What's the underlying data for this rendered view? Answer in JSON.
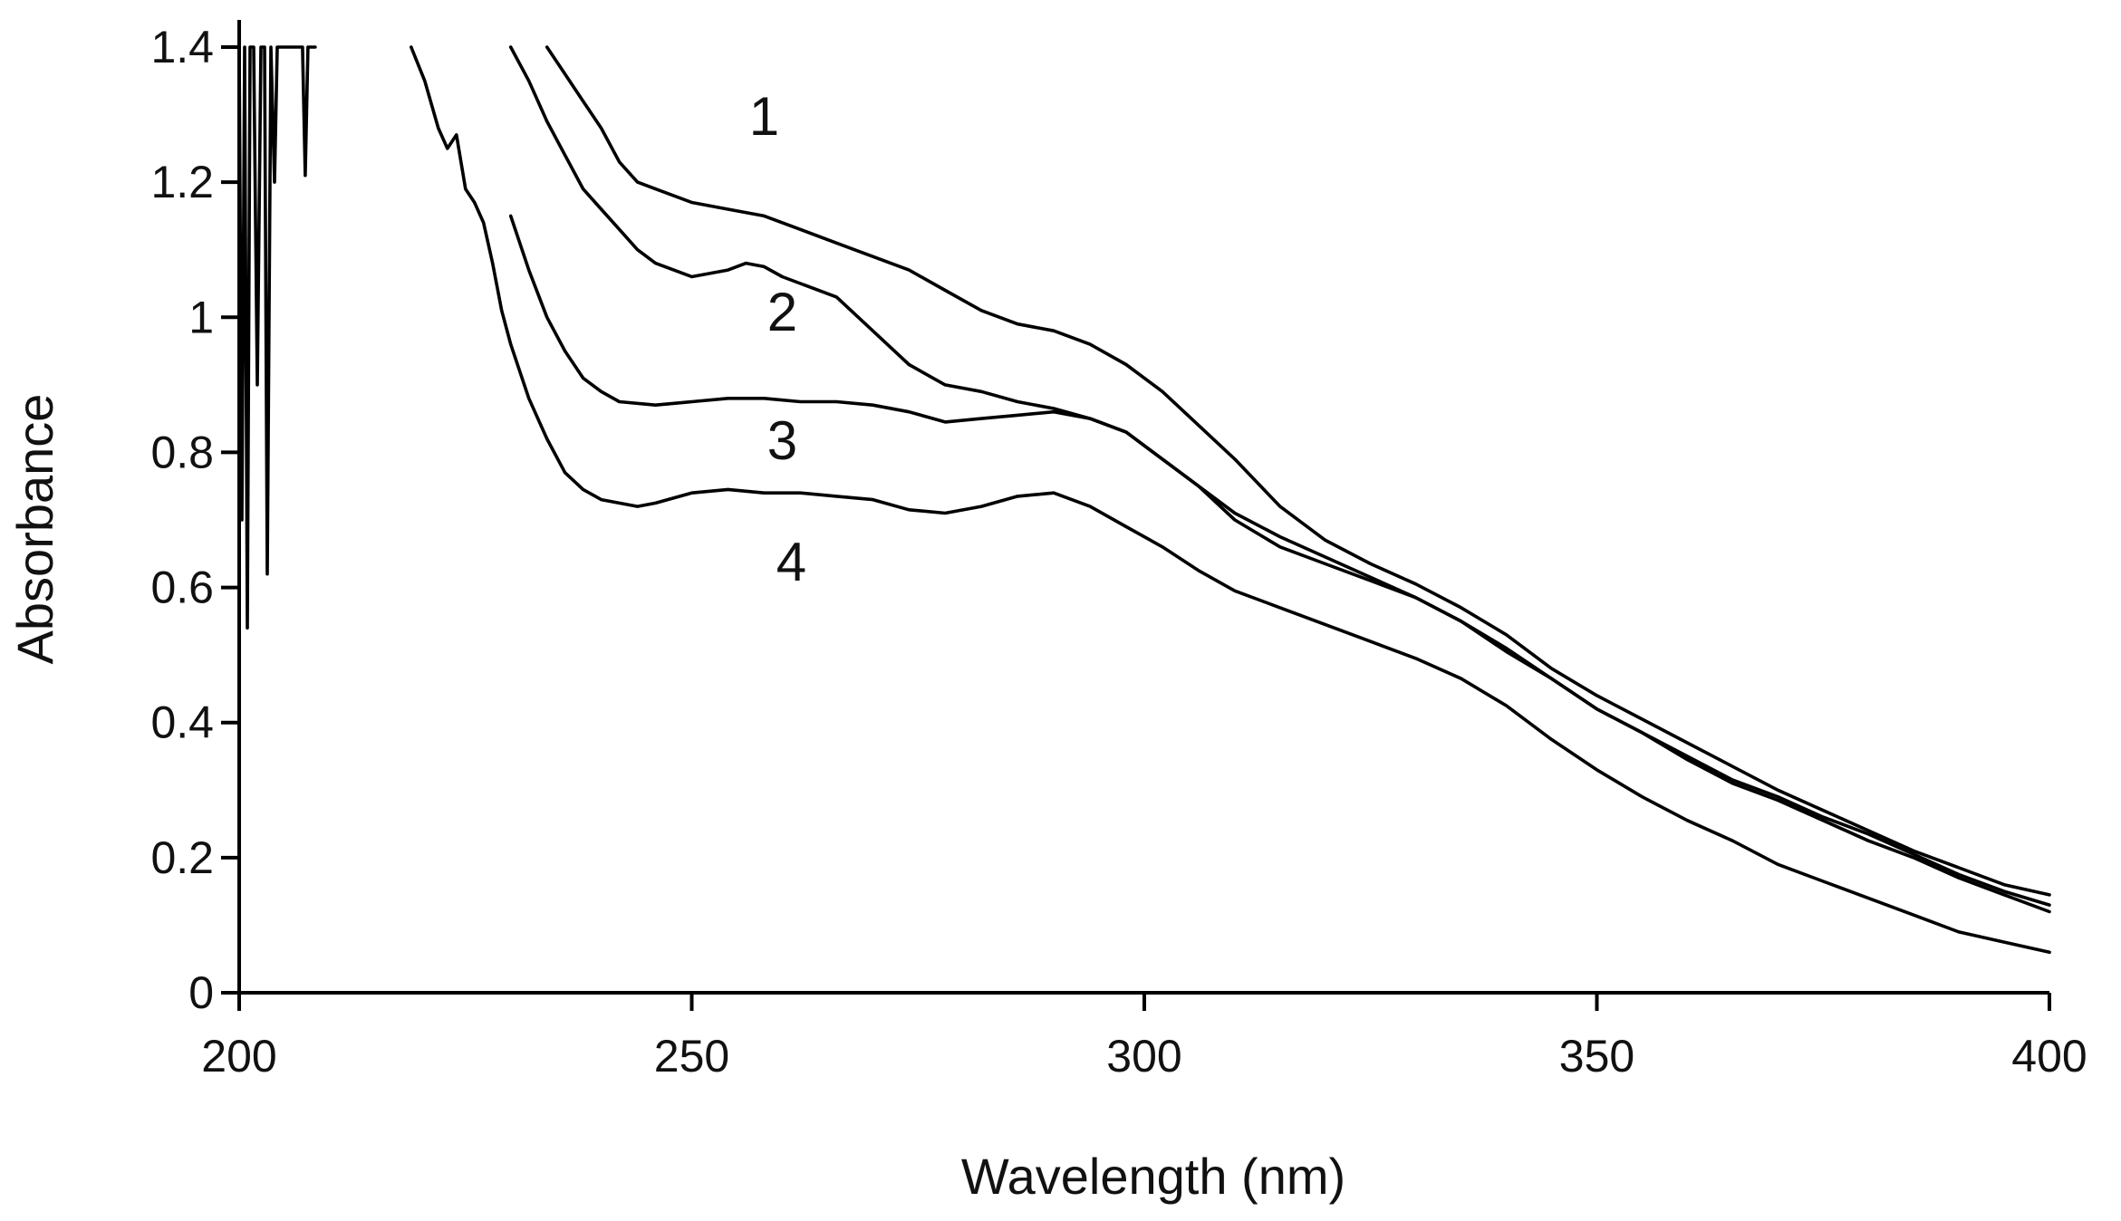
{
  "chart_data": {
    "type": "line",
    "title": "",
    "xlabel": "Wavelength (nm)",
    "ylabel": "Absorbance",
    "xlim": [
      200,
      400
    ],
    "ylim": [
      0,
      1.4
    ],
    "xticks": [
      200,
      250,
      300,
      350,
      400
    ],
    "yticks": [
      0,
      0.2,
      0.4,
      0.6,
      0.8,
      1,
      1.2,
      1.4
    ],
    "xtick_labels": [
      "200",
      "250",
      "300",
      "350",
      "400"
    ],
    "ytick_labels": [
      "0",
      "0.2",
      "0.4",
      "0.6",
      "0.8",
      "1",
      "1.2",
      "1.4"
    ],
    "grid": false,
    "legend": "none",
    "noise": {
      "x": [
        200,
        200.3,
        200.6,
        200.9,
        201.2,
        201.6,
        202,
        202.4,
        202.8,
        203.1,
        203.5,
        203.9,
        204.2,
        204.6,
        205.2,
        207,
        207.3,
        207.6,
        208,
        208.4
      ],
      "y": [
        1.4,
        0.7,
        1.4,
        0.54,
        1.4,
        1.4,
        0.9,
        1.4,
        1.4,
        0.62,
        1.4,
        1.2,
        1.4,
        1.4,
        1.4,
        1.4,
        1.21,
        1.4,
        1.4,
        1.4
      ]
    },
    "series": [
      {
        "name": "1",
        "x": [
          234,
          236,
          238,
          240,
          242,
          244,
          246,
          250,
          254,
          258,
          262,
          266,
          270,
          274,
          278,
          282,
          286,
          290,
          294,
          298,
          302,
          306,
          310,
          315,
          320,
          325,
          330,
          335,
          340,
          345,
          350,
          355,
          360,
          365,
          370,
          375,
          380,
          385,
          390,
          395,
          400
        ],
        "y": [
          1.4,
          1.36,
          1.32,
          1.28,
          1.23,
          1.2,
          1.19,
          1.17,
          1.16,
          1.15,
          1.13,
          1.11,
          1.09,
          1.07,
          1.04,
          1.01,
          0.99,
          0.98,
          0.96,
          0.93,
          0.89,
          0.84,
          0.79,
          0.72,
          0.67,
          0.635,
          0.605,
          0.57,
          0.53,
          0.48,
          0.44,
          0.405,
          0.37,
          0.335,
          0.3,
          0.27,
          0.24,
          0.21,
          0.185,
          0.16,
          0.145
        ]
      },
      {
        "name": "2",
        "x": [
          230,
          232,
          234,
          236,
          238,
          240,
          242,
          244,
          246,
          250,
          254,
          256,
          258,
          260,
          262,
          266,
          270,
          274,
          278,
          282,
          286,
          290,
          294,
          298,
          302,
          306,
          310,
          315,
          320,
          325,
          330,
          335,
          340,
          345,
          350,
          355,
          360,
          365,
          370,
          375,
          380,
          385,
          390,
          395,
          400
        ],
        "y": [
          1.4,
          1.35,
          1.29,
          1.24,
          1.19,
          1.16,
          1.13,
          1.1,
          1.08,
          1.06,
          1.07,
          1.08,
          1.075,
          1.06,
          1.05,
          1.03,
          0.98,
          0.93,
          0.9,
          0.89,
          0.875,
          0.865,
          0.85,
          0.83,
          0.79,
          0.75,
          0.71,
          0.675,
          0.645,
          0.615,
          0.585,
          0.55,
          0.51,
          0.465,
          0.42,
          0.385,
          0.35,
          0.315,
          0.29,
          0.26,
          0.235,
          0.205,
          0.175,
          0.15,
          0.13
        ]
      },
      {
        "name": "3",
        "x": [
          230,
          232,
          234,
          236,
          238,
          240,
          242,
          246,
          250,
          254,
          258,
          262,
          266,
          270,
          274,
          278,
          282,
          286,
          290,
          294,
          298,
          302,
          306,
          310,
          315,
          320,
          325,
          330,
          335,
          340,
          345,
          350,
          355,
          360,
          365,
          370,
          375,
          380,
          385,
          390,
          395,
          400
        ],
        "y": [
          1.15,
          1.07,
          1.0,
          0.95,
          0.91,
          0.89,
          0.875,
          0.87,
          0.875,
          0.88,
          0.88,
          0.875,
          0.875,
          0.87,
          0.86,
          0.845,
          0.85,
          0.855,
          0.86,
          0.85,
          0.83,
          0.79,
          0.75,
          0.7,
          0.66,
          0.635,
          0.61,
          0.585,
          0.55,
          0.505,
          0.465,
          0.42,
          0.385,
          0.345,
          0.31,
          0.285,
          0.255,
          0.225,
          0.2,
          0.17,
          0.145,
          0.12
        ]
      },
      {
        "name": "4",
        "x": [
          219,
          220.5,
          222,
          223,
          224,
          225,
          226,
          227,
          228,
          229,
          230,
          232,
          234,
          236,
          238,
          240,
          242,
          244,
          246,
          250,
          254,
          258,
          262,
          266,
          270,
          274,
          278,
          282,
          286,
          290,
          294,
          298,
          302,
          306,
          310,
          315,
          320,
          325,
          330,
          335,
          340,
          345,
          350,
          355,
          360,
          365,
          370,
          375,
          380,
          385,
          390,
          395,
          400
        ],
        "y": [
          1.4,
          1.35,
          1.28,
          1.25,
          1.27,
          1.19,
          1.17,
          1.14,
          1.08,
          1.01,
          0.96,
          0.88,
          0.82,
          0.77,
          0.745,
          0.73,
          0.725,
          0.72,
          0.725,
          0.74,
          0.745,
          0.74,
          0.74,
          0.735,
          0.73,
          0.715,
          0.71,
          0.72,
          0.735,
          0.74,
          0.72,
          0.69,
          0.66,
          0.625,
          0.595,
          0.57,
          0.545,
          0.52,
          0.495,
          0.465,
          0.425,
          0.375,
          0.33,
          0.29,
          0.255,
          0.225,
          0.19,
          0.165,
          0.14,
          0.115,
          0.09,
          0.075,
          0.06
        ]
      }
    ],
    "annotations": [
      {
        "text": "1",
        "x": 258,
        "y": 1.27
      },
      {
        "text": "2",
        "x": 260,
        "y": 0.98
      },
      {
        "text": "3",
        "x": 260,
        "y": 0.79
      },
      {
        "text": "4",
        "x": 261,
        "y": 0.61
      }
    ]
  }
}
